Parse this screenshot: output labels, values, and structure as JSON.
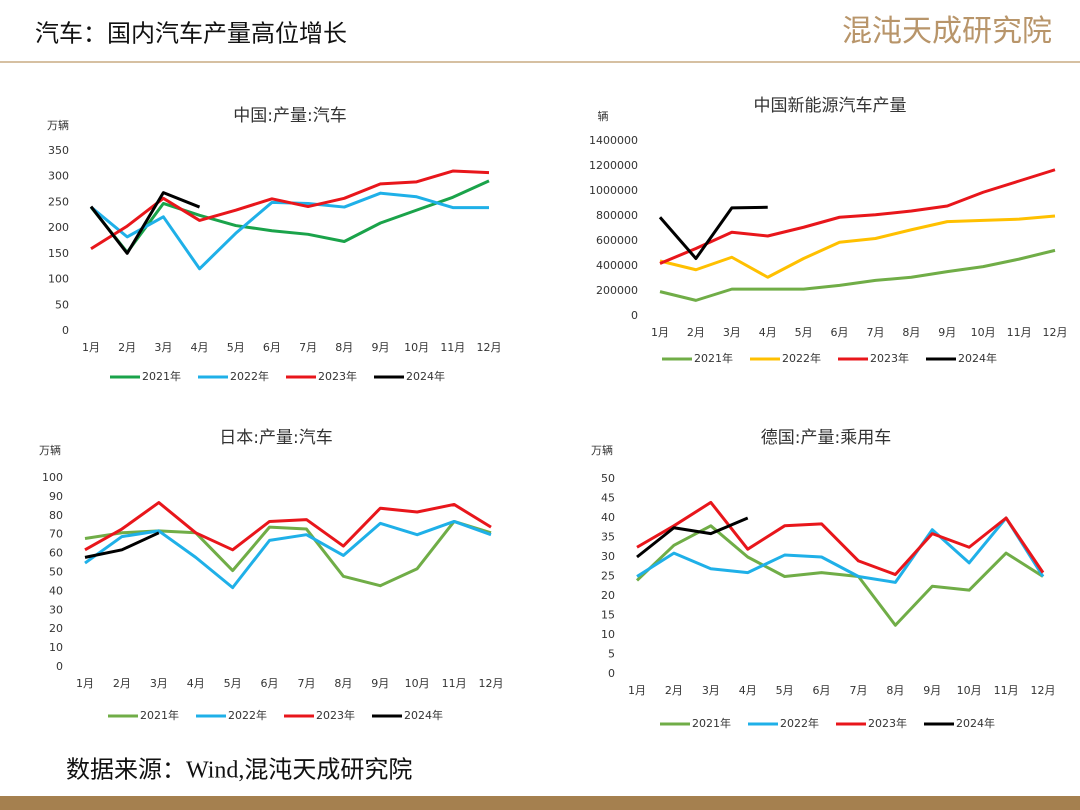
{
  "header": {
    "title": "汽车：国内汽车产量高位增长",
    "logo": "混沌天成研究院"
  },
  "source": "数据来源：Wind,混沌天成研究院",
  "chart_data": [
    {
      "type": "line",
      "title": "中国:产量:汽车",
      "y_label": "万辆",
      "grid": false,
      "categories": [
        "1月",
        "2月",
        "3月",
        "4月",
        "5月",
        "6月",
        "7月",
        "8月",
        "9月",
        "10月",
        "11月",
        "12月"
      ],
      "ylim": [
        0,
        350
      ],
      "yticks": [
        0,
        50,
        100,
        150,
        200,
        250,
        300,
        350
      ],
      "series": [
        {
          "name": "2021年",
          "color": "#1aa34a",
          "values": [
            241,
            153,
            248,
            225,
            205,
            195,
            188,
            174,
            210,
            235,
            260,
            292
          ]
        },
        {
          "name": "2022年",
          "color": "#1fb0e8",
          "values": [
            241,
            183,
            222,
            121,
            190,
            250,
            248,
            241,
            268,
            261,
            240,
            240
          ]
        },
        {
          "name": "2023年",
          "color": "#e8161b",
          "values": [
            160,
            204,
            258,
            215,
            235,
            257,
            242,
            258,
            286,
            290,
            311,
            308
          ]
        },
        {
          "name": "2024年",
          "color": "#000000",
          "values": [
            242,
            151,
            269,
            241,
            null,
            null,
            null,
            null,
            null,
            null,
            null,
            null
          ]
        }
      ]
    },
    {
      "type": "line",
      "title": "中国新能源汽车产量",
      "y_label": "辆",
      "grid": false,
      "categories": [
        "1月",
        "2月",
        "3月",
        "4月",
        "5月",
        "6月",
        "7月",
        "8月",
        "9月",
        "10月",
        "11月",
        "12月"
      ],
      "ylim": [
        0,
        1400000
      ],
      "yticks": [
        0,
        200000,
        400000,
        600000,
        800000,
        1000000,
        1200000,
        1400000
      ],
      "series": [
        {
          "name": "2021年",
          "color": "#70ad47",
          "values": [
            195000,
            125000,
            215000,
            215000,
            215000,
            245000,
            285000,
            310000,
            355000,
            395000,
            455000,
            525000
          ]
        },
        {
          "name": "2022年",
          "color": "#ffc000",
          "values": [
            440000,
            370000,
            470000,
            310000,
            460000,
            590000,
            620000,
            690000,
            755000,
            765000,
            775000,
            800000
          ]
        },
        {
          "name": "2023年",
          "color": "#e8161b",
          "values": [
            420000,
            540000,
            670000,
            640000,
            710000,
            790000,
            810000,
            840000,
            880000,
            990000,
            1080000,
            1170000
          ]
        },
        {
          "name": "2024年",
          "color": "#000000",
          "values": [
            790000,
            460000,
            865000,
            870000,
            null,
            null,
            null,
            null,
            null,
            null,
            null,
            null
          ]
        }
      ]
    },
    {
      "type": "line",
      "title": "日本:产量:汽车",
      "y_label": "万辆",
      "grid": false,
      "categories": [
        "1月",
        "2月",
        "3月",
        "4月",
        "5月",
        "6月",
        "7月",
        "8月",
        "9月",
        "10月",
        "11月",
        "12月"
      ],
      "ylim": [
        0,
        100
      ],
      "yticks": [
        0,
        10,
        20,
        30,
        40,
        50,
        60,
        70,
        80,
        90,
        100
      ],
      "series": [
        {
          "name": "2021年",
          "color": "#70ad47",
          "values": [
            68,
            71,
            72,
            71,
            51,
            74,
            73,
            48,
            43,
            52,
            77,
            71
          ]
        },
        {
          "name": "2022年",
          "color": "#1fb0e8",
          "values": [
            55,
            69,
            72,
            58,
            42,
            67,
            70,
            59,
            76,
            70,
            77,
            70
          ]
        },
        {
          "name": "2023年",
          "color": "#e8161b",
          "values": [
            62,
            73,
            87,
            71,
            62,
            77,
            78,
            64,
            84,
            82,
            86,
            74
          ]
        },
        {
          "name": "2024年",
          "color": "#000000",
          "values": [
            58,
            62,
            71,
            null,
            null,
            null,
            null,
            null,
            null,
            null,
            null,
            null
          ]
        }
      ]
    },
    {
      "type": "line",
      "title": "德国:产量:乘用车",
      "y_label": "万辆",
      "grid": false,
      "categories": [
        "1月",
        "2月",
        "3月",
        "4月",
        "5月",
        "6月",
        "7月",
        "8月",
        "9月",
        "10月",
        "11月",
        "12月"
      ],
      "ylim": [
        0,
        50
      ],
      "yticks": [
        0,
        5,
        10,
        15,
        20,
        25,
        30,
        35,
        40,
        45,
        50
      ],
      "series": [
        {
          "name": "2021年",
          "color": "#70ad47",
          "values": [
            24,
            33,
            38,
            30,
            25,
            26,
            25,
            12.5,
            22.5,
            21.5,
            31,
            25
          ]
        },
        {
          "name": "2022年",
          "color": "#1fb0e8",
          "values": [
            25,
            31,
            27,
            26,
            30.5,
            30,
            25,
            23.5,
            37,
            28.5,
            40,
            25
          ]
        },
        {
          "name": "2023年",
          "color": "#e8161b",
          "values": [
            32.5,
            38,
            44,
            32,
            38,
            38.5,
            29,
            25.5,
            36,
            32.5,
            40,
            26
          ]
        },
        {
          "name": "2024年",
          "color": "#000000",
          "values": [
            30,
            37.5,
            36,
            40,
            null,
            null,
            null,
            null,
            null,
            null,
            null,
            null
          ]
        }
      ]
    }
  ]
}
